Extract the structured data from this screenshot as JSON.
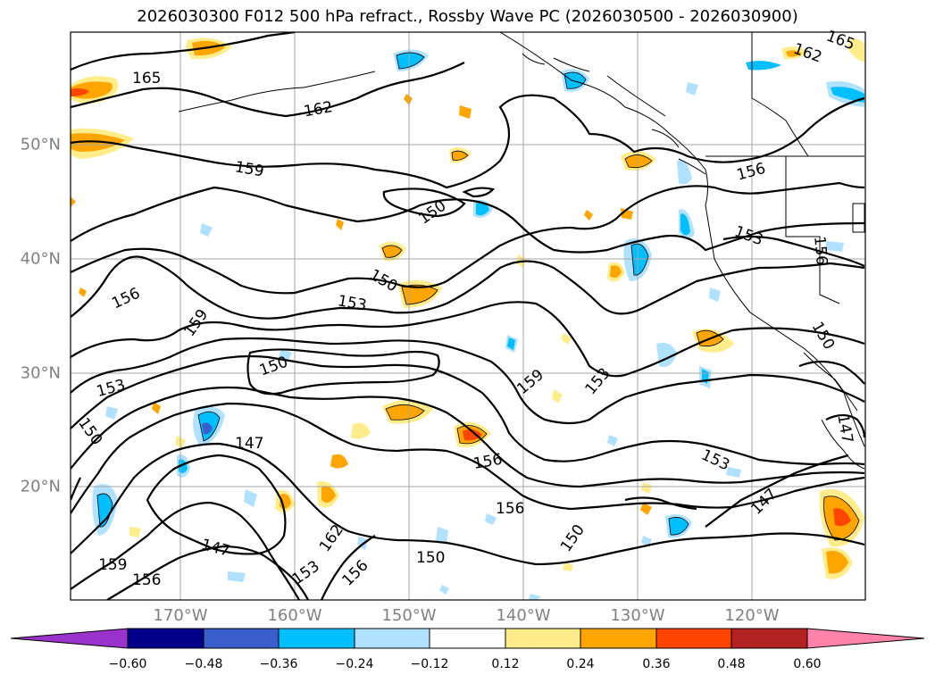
{
  "title": "2026030300 F012 500 hPa refract., Rossby Wave PC (2026030500 - 2026030900)",
  "map": {
    "longitude_labels": [
      "170°W",
      "160°W",
      "150°W",
      "140°W",
      "130°W",
      "120°W"
    ],
    "latitude_labels": [
      "50°N",
      "40°N",
      "30°N",
      "20°N"
    ],
    "contour_labels": [
      "165",
      "162",
      "159",
      "156",
      "153",
      "150",
      "147",
      "165",
      "162",
      "159",
      "156",
      "153",
      "150",
      "147",
      "156",
      "153",
      "150",
      "150",
      "156",
      "159",
      "162",
      "153",
      "156",
      "150",
      "159",
      "156",
      "150",
      "147",
      "156",
      "150",
      "147",
      "153",
      "153",
      "150",
      "156",
      "150",
      "159",
      "165"
    ]
  },
  "colorbar": {
    "ticks": [
      "−0.60",
      "−0.48",
      "−0.36",
      "−0.24",
      "−0.12",
      "0.12",
      "0.24",
      "0.36",
      "0.48",
      "0.60"
    ],
    "colors": [
      "#9933cc",
      "#00008b",
      "#3a5fcd",
      "#00bfff",
      "#b0e2ff",
      "#ffffff",
      "#ffec8b",
      "#ffa500",
      "#ff4500",
      "#b22222",
      "#ff82ab"
    ]
  }
}
